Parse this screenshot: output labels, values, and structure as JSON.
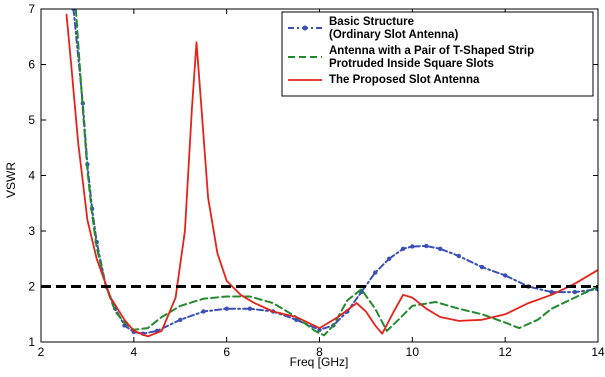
{
  "chart_data": {
    "type": "line",
    "title": "",
    "xlabel": "Freq [GHz]",
    "ylabel": "VSWR",
    "xlim": [
      2,
      14
    ],
    "ylim": [
      1,
      7
    ],
    "xticks": [
      2,
      4,
      6,
      8,
      10,
      12,
      14
    ],
    "yticks": [
      1,
      2,
      3,
      4,
      5,
      6,
      7
    ],
    "grid": false,
    "legend_position": "top-right",
    "legend": [
      {
        "label_lines": [
          "Basic Structure",
          "(Ordinary Slot Antenna)"
        ],
        "series_index": 0
      },
      {
        "label_lines": [
          "Antenna with a Pair of T-Shaped Strip",
          "Protruded Inside Square Slots"
        ],
        "series_index": 1
      },
      {
        "label_lines": [
          "The Proposed Slot Antenna"
        ],
        "series_index": 2
      }
    ],
    "reference_line": {
      "y": 2,
      "color": "#000000",
      "style": "dashed"
    },
    "series": [
      {
        "name": "Basic Structure (Ordinary Slot Antenna)",
        "color": "#3b4fb8",
        "style": "dash-dot-marker",
        "x": [
          2.7,
          2.9,
          3.0,
          3.1,
          3.2,
          3.4,
          3.6,
          3.8,
          4.0,
          4.2,
          4.5,
          5.0,
          5.5,
          6.0,
          6.5,
          7.0,
          7.5,
          8.0,
          8.3,
          8.6,
          8.9,
          9.2,
          9.5,
          9.8,
          10.0,
          10.3,
          10.6,
          11.0,
          11.5,
          12.0,
          12.5,
          13.0,
          13.5,
          14.0
        ],
        "y": [
          7.0,
          5.3,
          4.2,
          3.4,
          2.8,
          2.0,
          1.6,
          1.3,
          1.18,
          1.15,
          1.2,
          1.4,
          1.55,
          1.6,
          1.6,
          1.55,
          1.4,
          1.22,
          1.3,
          1.55,
          1.9,
          2.25,
          2.5,
          2.68,
          2.72,
          2.73,
          2.68,
          2.55,
          2.35,
          2.2,
          2.0,
          1.9,
          1.9,
          1.95
        ]
      },
      {
        "name": "Antenna with a Pair of T-Shaped Strip Protruded Inside Square Slots",
        "color": "#238a2e",
        "style": "dashed",
        "x": [
          2.75,
          2.9,
          3.0,
          3.1,
          3.2,
          3.4,
          3.6,
          3.8,
          4.0,
          4.3,
          4.6,
          5.0,
          5.5,
          6.0,
          6.5,
          7.0,
          7.5,
          7.9,
          8.1,
          8.3,
          8.6,
          8.9,
          9.2,
          9.45,
          9.7,
          10.0,
          10.5,
          11.0,
          11.5,
          12.0,
          12.3,
          12.7,
          13.0,
          13.5,
          14.0
        ],
        "y": [
          7.0,
          5.2,
          4.1,
          3.3,
          2.7,
          2.0,
          1.55,
          1.35,
          1.22,
          1.25,
          1.45,
          1.65,
          1.78,
          1.82,
          1.82,
          1.7,
          1.45,
          1.2,
          1.12,
          1.3,
          1.75,
          1.95,
          1.6,
          1.2,
          1.4,
          1.65,
          1.72,
          1.6,
          1.5,
          1.35,
          1.25,
          1.4,
          1.6,
          1.8,
          2.0
        ]
      },
      {
        "name": "The Proposed Slot Antenna",
        "color": "#e4231b",
        "style": "solid",
        "x": [
          2.55,
          2.65,
          2.8,
          3.0,
          3.2,
          3.5,
          3.8,
          4.0,
          4.3,
          4.6,
          4.9,
          5.1,
          5.25,
          5.35,
          5.45,
          5.6,
          5.8,
          6.0,
          6.3,
          6.6,
          7.0,
          7.5,
          8.0,
          8.4,
          8.8,
          9.0,
          9.2,
          9.35,
          9.6,
          9.8,
          10.0,
          10.3,
          10.6,
          11.0,
          11.5,
          12.0,
          12.5,
          13.0,
          13.5,
          14.0
        ],
        "y": [
          6.9,
          6.0,
          4.6,
          3.2,
          2.5,
          1.8,
          1.4,
          1.2,
          1.1,
          1.2,
          1.8,
          3.0,
          5.2,
          6.4,
          5.3,
          3.6,
          2.6,
          2.1,
          1.85,
          1.7,
          1.55,
          1.45,
          1.25,
          1.45,
          1.7,
          1.55,
          1.3,
          1.15,
          1.55,
          1.85,
          1.8,
          1.6,
          1.45,
          1.38,
          1.4,
          1.5,
          1.7,
          1.85,
          2.05,
          2.3
        ]
      }
    ]
  }
}
